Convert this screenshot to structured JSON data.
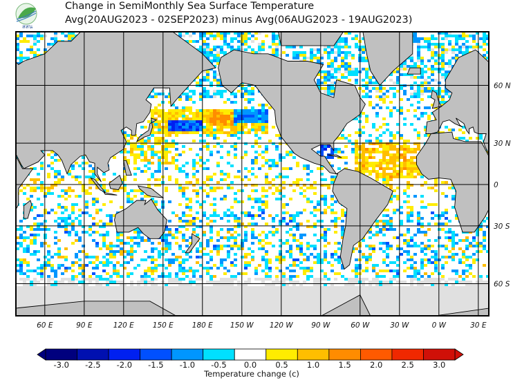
{
  "header": {
    "title_line1": "Change in SemiMonthly Sea Surface Temperature",
    "title_line2": "Avg(20AUG2023 - 02SEP2023) minus Avg(06AUG2023 - 19AUG2023)",
    "logo_text": "สสน"
  },
  "map": {
    "projection": "mercator",
    "land_color": "#c0c0c0",
    "sea_ice_color": "#e0e0e0",
    "lon_labels": [
      "60 E",
      "90 E",
      "120 E",
      "150 E",
      "180 E",
      "150 W",
      "120 W",
      "90 W",
      "60 W",
      "30 W",
      "0 W",
      "30 E"
    ],
    "lat_labels": [
      "60 N",
      "30 N",
      "0",
      "30 S",
      "60 S"
    ]
  },
  "colorbar": {
    "label": "Temperature change  (c)",
    "values": [
      "-3.0",
      "-2.5",
      "-2.0",
      "-1.5",
      "-1.0",
      "-0.5",
      "0.0",
      "0.5",
      "1.0",
      "1.5",
      "2.0",
      "2.5",
      "3.0"
    ],
    "colors": [
      "#00007e",
      "#0010b0",
      "#0020f0",
      "#0050ff",
      "#0096ff",
      "#00e0ff",
      "#ffffff",
      "#ffec00",
      "#ffbe00",
      "#ff8c00",
      "#ff5a00",
      "#f02800",
      "#d01008"
    ]
  }
}
